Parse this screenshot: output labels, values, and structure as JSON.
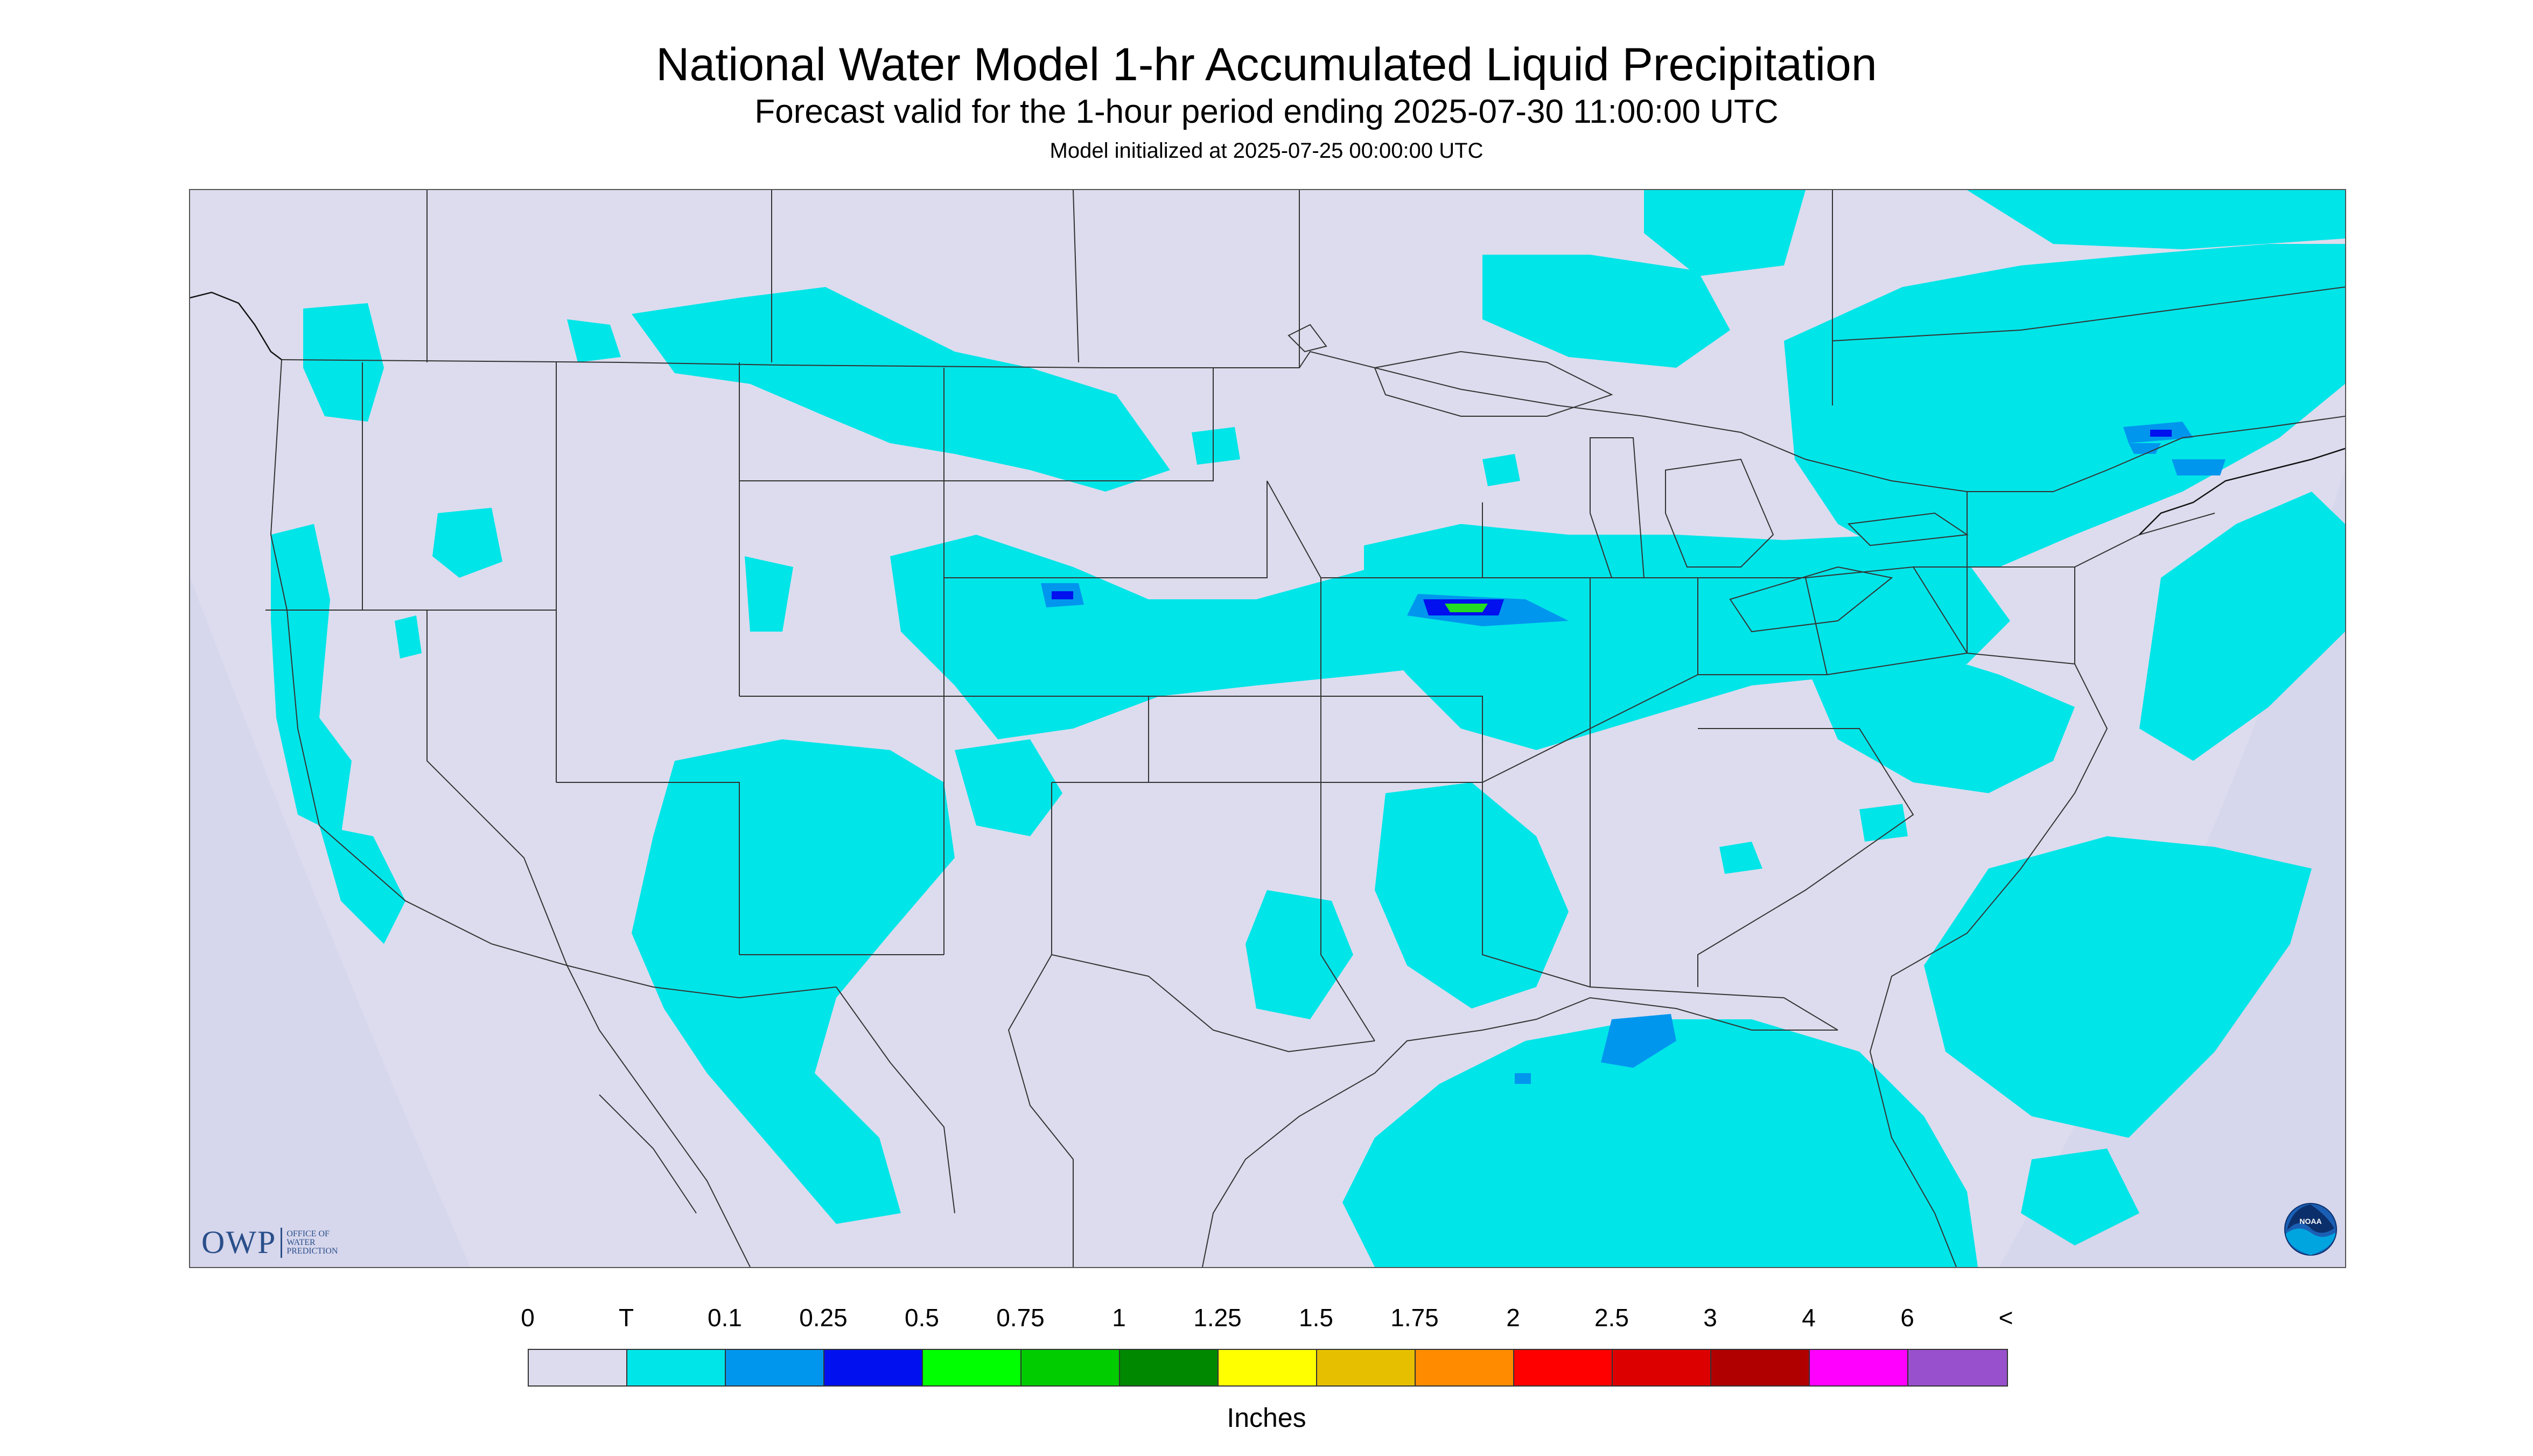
{
  "header": {
    "title": "National Water Model 1-hr Accumulated Liquid Precipitation",
    "subtitle": "Forecast valid for the 1-hour period ending 2025-07-30 11:00:00 UTC",
    "init": "Model initialized at 2025-07-25 00:00:00 UTC"
  },
  "map": {
    "background_color": "#dcdcee",
    "outside_projection_color": "#dcdcee",
    "border_color": "#333333",
    "trace_color": "#00e5e8",
    "light_rain_color": "#0096ee",
    "heavy_color": "#0010ee",
    "green_color": "#22dd22"
  },
  "logos": {
    "owp_letters": "OWP",
    "owp_line1": "OFFICE OF",
    "owp_line2": "WATER",
    "owp_line3": "PREDICTION",
    "noaa_label": "NOAA"
  },
  "legend": {
    "labels": [
      "0",
      "T",
      "0.1",
      "0.25",
      "0.5",
      "0.75",
      "1",
      "1.25",
      "1.5",
      "1.75",
      "2",
      "2.5",
      "3",
      "4",
      "6",
      "<"
    ],
    "colors": [
      "#dcdcee",
      "#00e5e8",
      "#0096ee",
      "#0010ee",
      "#00ff00",
      "#00cc00",
      "#008800",
      "#ffff00",
      "#e6c000",
      "#ff8c00",
      "#ff0000",
      "#dd0000",
      "#b00000",
      "#ff00ff",
      "#9950cc"
    ],
    "unit": "Inches"
  }
}
